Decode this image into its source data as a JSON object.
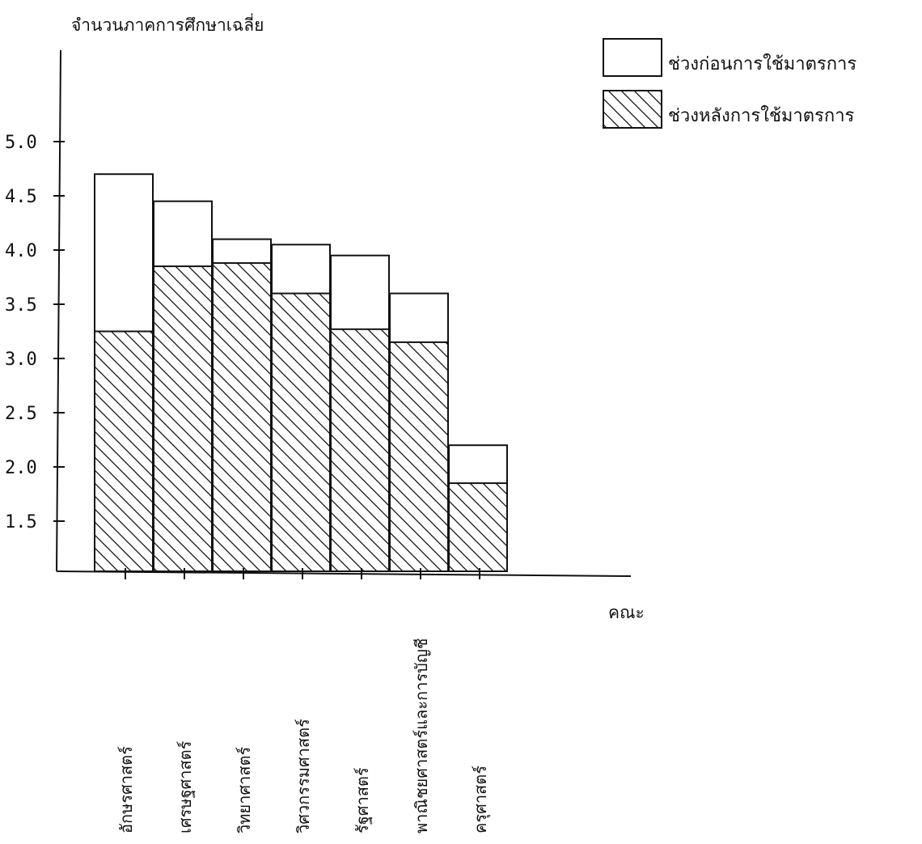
{
  "chart_data": {
    "type": "bar",
    "title": "",
    "ylabel": "จำนวนภาคการศึกษาเฉลี่ย",
    "xlabel": "คณะ",
    "ylim": [
      1.0,
      5.3
    ],
    "yticks": [
      "1.5",
      "2.0",
      "2.5",
      "3.0",
      "3.5",
      "4.0",
      "4.5",
      "5.0"
    ],
    "categories": [
      "อักษรศาสตร์",
      "เศรษฐศาสตร์",
      "วิทยาศาสตร์",
      "วิศวกรรมศาสตร์",
      "รัฐศาสตร์",
      "พาณิชยศาสตร์และการบัญชี",
      "ครุศาสตร์"
    ],
    "series": [
      {
        "name": "ช่วงก่อนการใช้มาตรการ",
        "values": [
          4.7,
          4.45,
          4.1,
          4.05,
          3.95,
          3.6,
          2.2
        ]
      },
      {
        "name": "ช่วงหลังการใช้มาตรการ",
        "values": [
          3.25,
          3.85,
          3.88,
          3.6,
          3.27,
          3.15,
          1.85
        ]
      }
    ],
    "legend": "top-right",
    "grid": false,
    "colors": {
      "ink": "#111111",
      "background": "#ffffff"
    }
  }
}
